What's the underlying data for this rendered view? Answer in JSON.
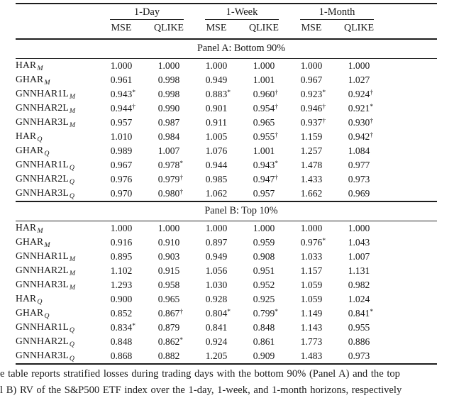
{
  "header": {
    "groups": [
      {
        "label": "1-Day"
      },
      {
        "label": "1-Week"
      },
      {
        "label": "1-Month"
      }
    ],
    "metrics": [
      "MSE",
      "QLIKE",
      "MSE",
      "QLIKE",
      "MSE",
      "QLIKE"
    ]
  },
  "panels": [
    {
      "title": "Panel A: Bottom 90%",
      "rows": [
        {
          "model": "HAR",
          "sub": "M",
          "values": [
            {
              "v": "1.000",
              "m": ""
            },
            {
              "v": "1.000",
              "m": ""
            },
            {
              "v": "1.000",
              "m": ""
            },
            {
              "v": "1.000",
              "m": ""
            },
            {
              "v": "1.000",
              "m": ""
            },
            {
              "v": "1.000",
              "m": ""
            }
          ]
        },
        {
          "model": "GHAR",
          "sub": "M",
          "values": [
            {
              "v": "0.961",
              "m": ""
            },
            {
              "v": "0.998",
              "m": ""
            },
            {
              "v": "0.949",
              "m": ""
            },
            {
              "v": "1.001",
              "m": ""
            },
            {
              "v": "0.967",
              "m": ""
            },
            {
              "v": "1.027",
              "m": ""
            }
          ]
        },
        {
          "model": "GNNHAR1L",
          "sub": "M",
          "values": [
            {
              "v": "0.943",
              "m": "*"
            },
            {
              "v": "0.998",
              "m": ""
            },
            {
              "v": "0.883",
              "m": "*"
            },
            {
              "v": "0.960",
              "m": "†"
            },
            {
              "v": "0.923",
              "m": "*"
            },
            {
              "v": "0.924",
              "m": "†"
            }
          ]
        },
        {
          "model": "GNNHAR2L",
          "sub": "M",
          "values": [
            {
              "v": "0.944",
              "m": "†"
            },
            {
              "v": "0.990",
              "m": ""
            },
            {
              "v": "0.901",
              "m": ""
            },
            {
              "v": "0.954",
              "m": "†"
            },
            {
              "v": "0.946",
              "m": "†"
            },
            {
              "v": "0.921",
              "m": "*"
            }
          ]
        },
        {
          "model": "GNNHAR3L",
          "sub": "M",
          "values": [
            {
              "v": "0.957",
              "m": ""
            },
            {
              "v": "0.987",
              "m": ""
            },
            {
              "v": "0.911",
              "m": ""
            },
            {
              "v": "0.965",
              "m": ""
            },
            {
              "v": "0.937",
              "m": "†"
            },
            {
              "v": "0.930",
              "m": "†"
            }
          ]
        },
        {
          "model": "HAR",
          "sub": "Q",
          "values": [
            {
              "v": "1.010",
              "m": ""
            },
            {
              "v": "0.984",
              "m": ""
            },
            {
              "v": "1.005",
              "m": ""
            },
            {
              "v": "0.955",
              "m": "†"
            },
            {
              "v": "1.159",
              "m": ""
            },
            {
              "v": "0.942",
              "m": "†"
            }
          ]
        },
        {
          "model": "GHAR",
          "sub": "Q",
          "values": [
            {
              "v": "0.989",
              "m": ""
            },
            {
              "v": "1.007",
              "m": ""
            },
            {
              "v": "1.076",
              "m": ""
            },
            {
              "v": "1.001",
              "m": ""
            },
            {
              "v": "1.257",
              "m": ""
            },
            {
              "v": "1.084",
              "m": ""
            }
          ]
        },
        {
          "model": "GNNHAR1L",
          "sub": "Q",
          "values": [
            {
              "v": "0.967",
              "m": ""
            },
            {
              "v": "0.978",
              "m": "*"
            },
            {
              "v": "0.944",
              "m": ""
            },
            {
              "v": "0.943",
              "m": "*"
            },
            {
              "v": "1.478",
              "m": ""
            },
            {
              "v": "0.977",
              "m": ""
            }
          ]
        },
        {
          "model": "GNNHAR2L",
          "sub": "Q",
          "values": [
            {
              "v": "0.976",
              "m": ""
            },
            {
              "v": "0.979",
              "m": "†"
            },
            {
              "v": "0.985",
              "m": ""
            },
            {
              "v": "0.947",
              "m": "†"
            },
            {
              "v": "1.433",
              "m": ""
            },
            {
              "v": "0.973",
              "m": ""
            }
          ]
        },
        {
          "model": "GNNHAR3L",
          "sub": "Q",
          "values": [
            {
              "v": "0.970",
              "m": ""
            },
            {
              "v": "0.980",
              "m": "†"
            },
            {
              "v": "1.062",
              "m": ""
            },
            {
              "v": "0.957",
              "m": ""
            },
            {
              "v": "1.662",
              "m": ""
            },
            {
              "v": "0.969",
              "m": ""
            }
          ]
        }
      ]
    },
    {
      "title": "Panel B: Top 10%",
      "rows": [
        {
          "model": "HAR",
          "sub": "M",
          "values": [
            {
              "v": "1.000",
              "m": ""
            },
            {
              "v": "1.000",
              "m": ""
            },
            {
              "v": "1.000",
              "m": ""
            },
            {
              "v": "1.000",
              "m": ""
            },
            {
              "v": "1.000",
              "m": ""
            },
            {
              "v": "1.000",
              "m": ""
            }
          ]
        },
        {
          "model": "GHAR",
          "sub": "M",
          "values": [
            {
              "v": "0.916",
              "m": ""
            },
            {
              "v": "0.910",
              "m": ""
            },
            {
              "v": "0.897",
              "m": ""
            },
            {
              "v": "0.959",
              "m": ""
            },
            {
              "v": "0.976",
              "m": "*"
            },
            {
              "v": "1.043",
              "m": ""
            }
          ]
        },
        {
          "model": "GNNHAR1L",
          "sub": "M",
          "values": [
            {
              "v": "0.895",
              "m": ""
            },
            {
              "v": "0.903",
              "m": ""
            },
            {
              "v": "0.949",
              "m": ""
            },
            {
              "v": "0.908",
              "m": ""
            },
            {
              "v": "1.033",
              "m": ""
            },
            {
              "v": "1.007",
              "m": ""
            }
          ]
        },
        {
          "model": "GNNHAR2L",
          "sub": "M",
          "values": [
            {
              "v": "1.102",
              "m": ""
            },
            {
              "v": "0.915",
              "m": ""
            },
            {
              "v": "1.056",
              "m": ""
            },
            {
              "v": "0.951",
              "m": ""
            },
            {
              "v": "1.157",
              "m": ""
            },
            {
              "v": "1.131",
              "m": ""
            }
          ]
        },
        {
          "model": "GNNHAR3L",
          "sub": "M",
          "values": [
            {
              "v": "1.293",
              "m": ""
            },
            {
              "v": "0.958",
              "m": ""
            },
            {
              "v": "1.030",
              "m": ""
            },
            {
              "v": "0.952",
              "m": ""
            },
            {
              "v": "1.059",
              "m": ""
            },
            {
              "v": "0.982",
              "m": ""
            }
          ]
        },
        {
          "model": "HAR",
          "sub": "Q",
          "values": [
            {
              "v": "0.900",
              "m": ""
            },
            {
              "v": "0.965",
              "m": ""
            },
            {
              "v": "0.928",
              "m": ""
            },
            {
              "v": "0.925",
              "m": ""
            },
            {
              "v": "1.059",
              "m": ""
            },
            {
              "v": "1.024",
              "m": ""
            }
          ]
        },
        {
          "model": "GHAR",
          "sub": "Q",
          "values": [
            {
              "v": "0.852",
              "m": ""
            },
            {
              "v": "0.867",
              "m": "†"
            },
            {
              "v": "0.804",
              "m": "*"
            },
            {
              "v": "0.799",
              "m": "*"
            },
            {
              "v": "1.149",
              "m": ""
            },
            {
              "v": "0.841",
              "m": "*"
            }
          ]
        },
        {
          "model": "GNNHAR1L",
          "sub": "Q",
          "values": [
            {
              "v": "0.834",
              "m": "*"
            },
            {
              "v": "0.879",
              "m": ""
            },
            {
              "v": "0.841",
              "m": ""
            },
            {
              "v": "0.848",
              "m": ""
            },
            {
              "v": "1.143",
              "m": ""
            },
            {
              "v": "0.955",
              "m": ""
            }
          ]
        },
        {
          "model": "GNNHAR2L",
          "sub": "Q",
          "values": [
            {
              "v": "0.848",
              "m": ""
            },
            {
              "v": "0.862",
              "m": "*"
            },
            {
              "v": "0.924",
              "m": ""
            },
            {
              "v": "0.861",
              "m": ""
            },
            {
              "v": "1.773",
              "m": ""
            },
            {
              "v": "0.886",
              "m": ""
            }
          ]
        },
        {
          "model": "GNNHAR3L",
          "sub": "Q",
          "values": [
            {
              "v": "0.868",
              "m": ""
            },
            {
              "v": "0.882",
              "m": ""
            },
            {
              "v": "1.205",
              "m": ""
            },
            {
              "v": "0.909",
              "m": ""
            },
            {
              "v": "1.483",
              "m": ""
            },
            {
              "v": "0.973",
              "m": ""
            }
          ]
        }
      ]
    }
  ],
  "caption": {
    "line1": "e table reports stratified losses during trading days with the bottom 90% (Panel A) and the top",
    "line2": "l B) RV of the S&P500 ETF index over the 1-day, 1-week, and 1-month horizons, respectively"
  }
}
